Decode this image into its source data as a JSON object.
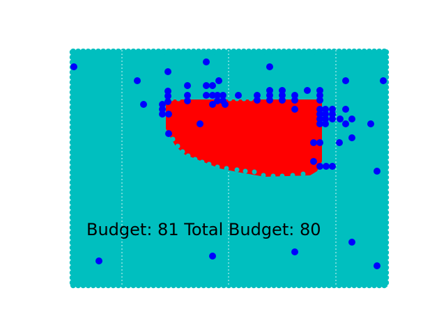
{
  "game": {
    "budget_label": "Budget:",
    "budget_value": "81",
    "total_budget_label": "Total Budget:",
    "total_budget_value": "80",
    "colors": {
      "field": "#00BFBF",
      "field_edge": "#00BFBF",
      "grid": "#ffffff",
      "covered_region": "#FF0000",
      "agent": "#0000FF"
    },
    "icons": {
      "agent": "blue-dot",
      "field_cell": "cyan-dot"
    }
  }
}
